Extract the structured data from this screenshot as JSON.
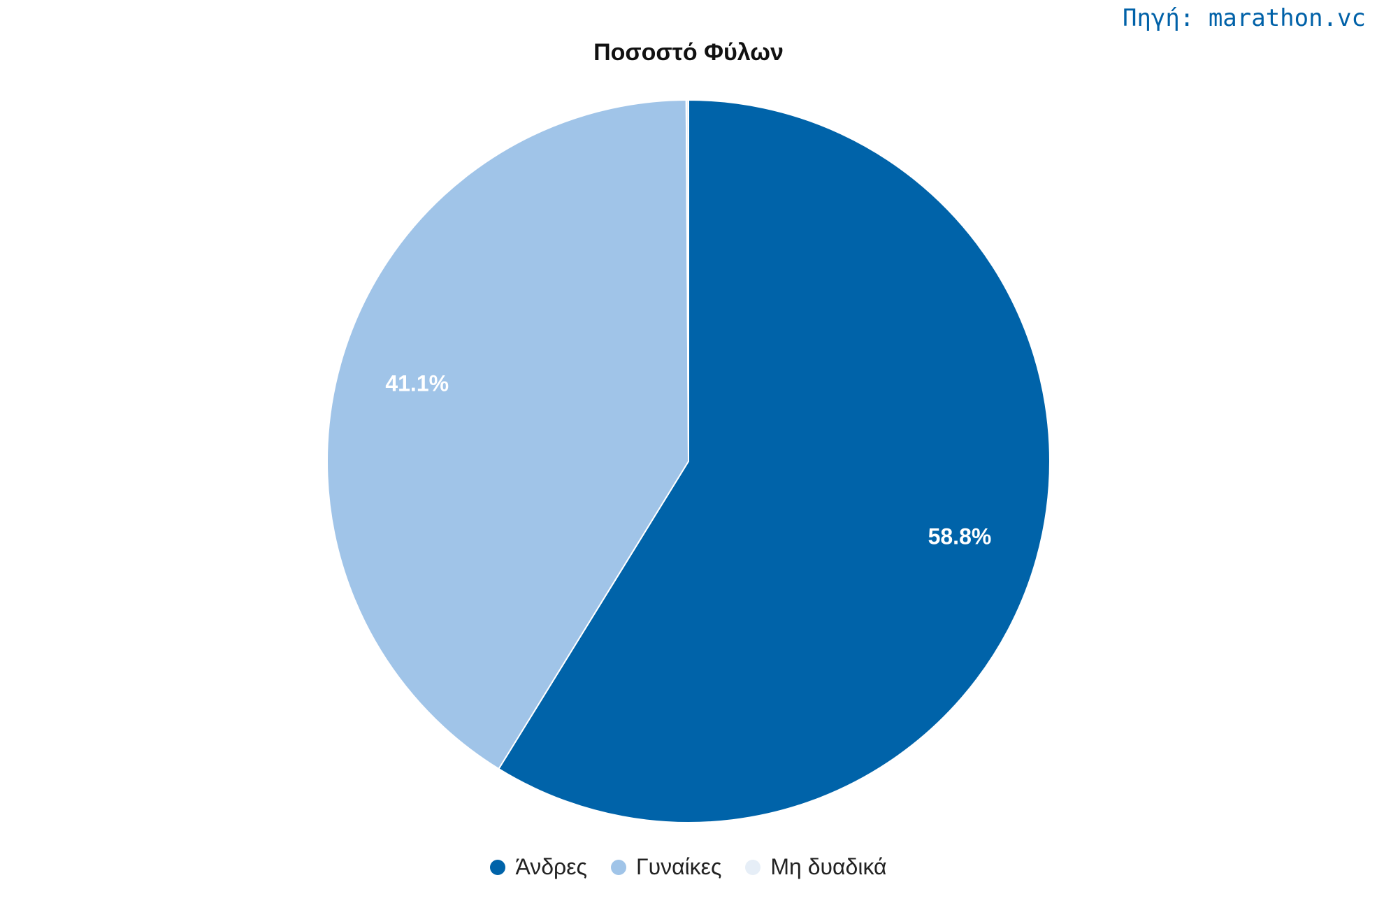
{
  "source": {
    "label": "Πηγή:",
    "value": "marathon.vc"
  },
  "chart_data": {
    "type": "pie",
    "title": "Ποσοστό Φύλων",
    "slices": [
      {
        "name": "Άνδρες",
        "value": 58.8,
        "label": "58.8%",
        "color": "#0063a9"
      },
      {
        "name": "Γυναίκες",
        "value": 41.1,
        "label": "41.1%",
        "color": "#a0c4e8"
      },
      {
        "name": "Μη δυαδικά",
        "value": 0.1,
        "label": "",
        "color": "#e6eef7"
      }
    ],
    "legend_position": "bottom"
  }
}
